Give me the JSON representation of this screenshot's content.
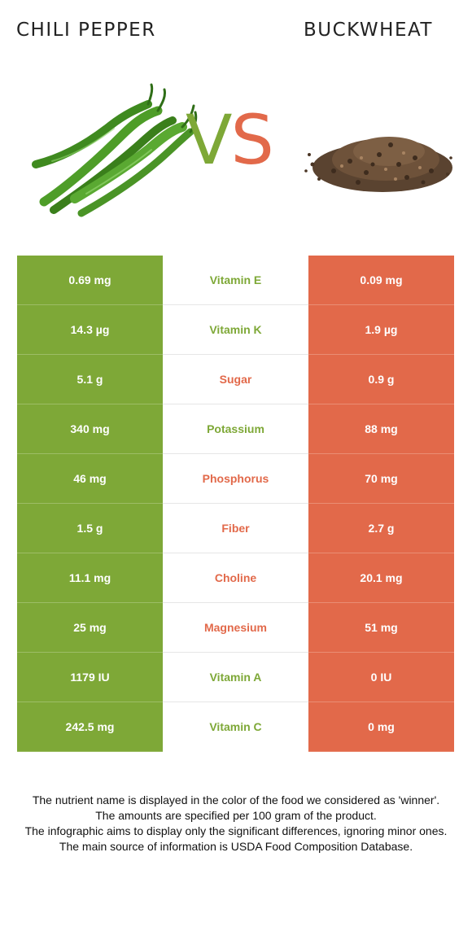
{
  "header": {
    "left_title": "CHILI PEPPER",
    "right_title": "BUCKWHEAT",
    "vs_v": "V",
    "vs_s": "S"
  },
  "colors": {
    "chili": "#7ea837",
    "buckwheat": "#e2694a"
  },
  "images": {
    "left": "green-chili-peppers-image",
    "right": "buckwheat-groats-pile-image"
  },
  "rows": [
    {
      "left": "0.69 mg",
      "nutrient": "Vitamin E",
      "right": "0.09 mg",
      "winner": "chili"
    },
    {
      "left": "14.3 µg",
      "nutrient": "Vitamin K",
      "right": "1.9 µg",
      "winner": "chili"
    },
    {
      "left": "5.1 g",
      "nutrient": "Sugar",
      "right": "0.9 g",
      "winner": "buckwheat"
    },
    {
      "left": "340 mg",
      "nutrient": "Potassium",
      "right": "88 mg",
      "winner": "chili"
    },
    {
      "left": "46 mg",
      "nutrient": "Phosphorus",
      "right": "70 mg",
      "winner": "buckwheat"
    },
    {
      "left": "1.5 g",
      "nutrient": "Fiber",
      "right": "2.7 g",
      "winner": "buckwheat"
    },
    {
      "left": "11.1 mg",
      "nutrient": "Choline",
      "right": "20.1 mg",
      "winner": "buckwheat"
    },
    {
      "left": "25 mg",
      "nutrient": "Magnesium",
      "right": "51 mg",
      "winner": "buckwheat"
    },
    {
      "left": "1179 IU",
      "nutrient": "Vitamin A",
      "right": "0 IU",
      "winner": "chili"
    },
    {
      "left": "242.5 mg",
      "nutrient": "Vitamin C",
      "right": "0 mg",
      "winner": "chili"
    }
  ],
  "footer": {
    "line1": "The nutrient name is displayed in the color of the food we considered as 'winner'.",
    "line2": "The amounts are specified per 100 gram of the product.",
    "line3": "The infographic aims to display only the significant differences, ignoring minor ones.",
    "line4": "The main source of information is USDA Food Composition Database."
  }
}
